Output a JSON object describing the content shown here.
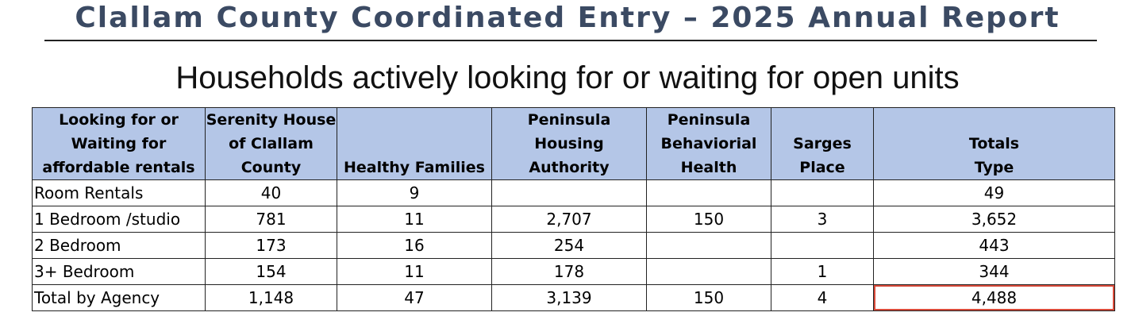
{
  "report_title": "Clallam County Coordinated Entry – 2025 Annual Report",
  "subtitle": "Households actively looking for or waiting for open units",
  "table": {
    "headers": [
      "Looking for or\nWaiting for\naffordable rentals",
      "Serenity House\nof Clallam\nCounty",
      "Healthy Families",
      "Peninsula\nHousing\nAuthority",
      "Peninsula\nBehaviorial\nHealth",
      "Sarges\nPlace",
      "Totals\nType"
    ],
    "rows": [
      [
        "Room Rentals",
        "40",
        "9",
        "",
        "",
        "",
        "49"
      ],
      [
        "1 Bedroom /studio",
        "781",
        "11",
        "2,707",
        "150",
        "3",
        "3,652"
      ],
      [
        "2 Bedroom",
        "173",
        "16",
        "254",
        "",
        "",
        "443"
      ],
      [
        "3+ Bedroom",
        "154",
        "11",
        "178",
        "",
        "1",
        "344"
      ],
      [
        "Total by Agency",
        "1,148",
        "47",
        "3,139",
        "150",
        "4",
        "4,488"
      ]
    ],
    "highlighted_cell_value": "4,488",
    "header_bg_color": "#b4c6e7",
    "highlight_border_color": "#d94b3a"
  }
}
